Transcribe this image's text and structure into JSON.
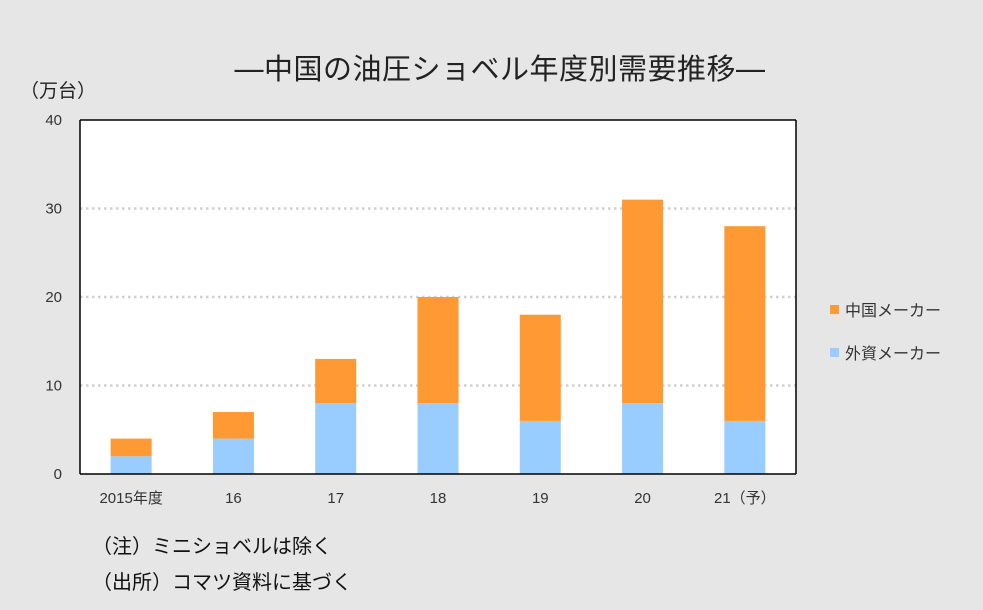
{
  "title": "―中国の油圧ショベル年度別需要推移―",
  "unit_label": "（万台）",
  "notes": [
    "（注）ミニショベルは除く",
    "（出所）コマツ資料に基づく"
  ],
  "colors": {
    "china": "#ff9933",
    "foreign": "#99ccff",
    "background": "#e6e6e6",
    "plot_background": "#ffffff",
    "grid": "#d0d0d0"
  },
  "chart_data": {
    "type": "bar",
    "stacked": true,
    "categories": [
      "2015年度",
      "16",
      "17",
      "18",
      "19",
      "20",
      "21（予）"
    ],
    "series": [
      {
        "name": "外資メーカー",
        "key": "foreign",
        "values": [
          2,
          4,
          8,
          8,
          6,
          8,
          6
        ]
      },
      {
        "name": "中国メーカー",
        "key": "china",
        "values": [
          2,
          3,
          5,
          12,
          12,
          23,
          22
        ]
      }
    ],
    "legend_order": [
      "china",
      "foreign"
    ],
    "ylim": [
      0,
      40
    ],
    "yticks": [
      0,
      10,
      20,
      30,
      40
    ],
    "ylabel": "（万台）",
    "xlabel": "",
    "grid": true,
    "legend_position": "right"
  }
}
